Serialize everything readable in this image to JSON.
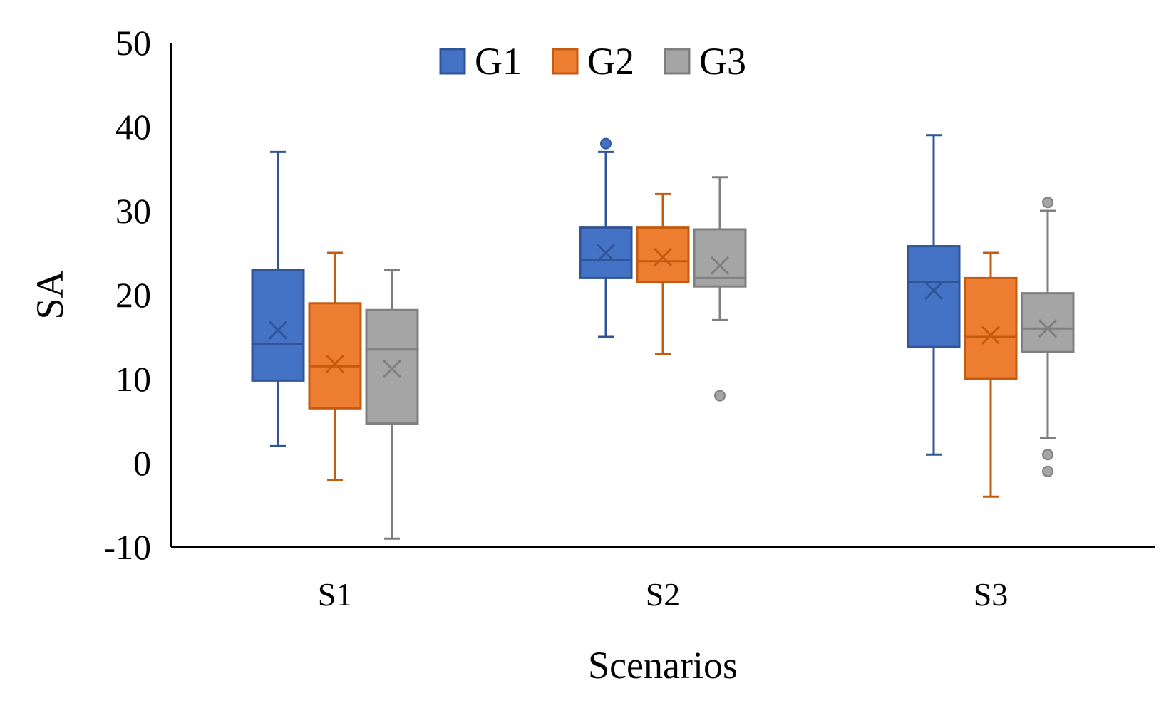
{
  "chart_data": {
    "type": "box",
    "title": "",
    "xlabel": "Scenarios",
    "ylabel": "SA",
    "ylim": [
      -10,
      50
    ],
    "yticks": [
      "-10",
      "0",
      "10",
      "20",
      "30",
      "40",
      "50"
    ],
    "categories": [
      "S1",
      "S2",
      "S3"
    ],
    "legend_position": "top-center",
    "grid": false,
    "series": [
      {
        "name": "G1",
        "color": "#4472C4",
        "edge": "#2F5597",
        "boxes": [
          {
            "min": 2,
            "q1": 9.8,
            "median": 14.2,
            "q3": 23,
            "max": 37,
            "mean": 15.8,
            "outliers": []
          },
          {
            "min": 15,
            "q1": 22,
            "median": 24.2,
            "q3": 28,
            "max": 37,
            "mean": 25,
            "outliers": [
              38
            ]
          },
          {
            "min": 1,
            "q1": 13.8,
            "median": 21.5,
            "q3": 25.8,
            "max": 39,
            "mean": 20.5,
            "outliers": []
          }
        ]
      },
      {
        "name": "G2",
        "color": "#ED7D31",
        "edge": "#C55A11",
        "boxes": [
          {
            "min": -2,
            "q1": 6.5,
            "median": 11.5,
            "q3": 19,
            "max": 25,
            "mean": 11.8,
            "outliers": []
          },
          {
            "min": 13,
            "q1": 21.5,
            "median": 24,
            "q3": 28,
            "max": 32,
            "mean": 24.5,
            "outliers": []
          },
          {
            "min": -4,
            "q1": 10,
            "median": 15,
            "q3": 22,
            "max": 25,
            "mean": 15.2,
            "outliers": []
          }
        ]
      },
      {
        "name": "G3",
        "color": "#A5A5A5",
        "edge": "#7F7F7F",
        "boxes": [
          {
            "min": -9,
            "q1": 4.7,
            "median": 13.5,
            "q3": 18.2,
            "max": 23,
            "mean": 11.2,
            "outliers": []
          },
          {
            "min": 17,
            "q1": 21,
            "median": 22,
            "q3": 27.8,
            "max": 34,
            "mean": 23.5,
            "outliers": [
              8
            ]
          },
          {
            "min": 3,
            "q1": 13.2,
            "median": 16,
            "q3": 20.2,
            "max": 30,
            "mean": 16,
            "outliers": [
              31,
              1,
              -1
            ]
          }
        ]
      }
    ]
  }
}
